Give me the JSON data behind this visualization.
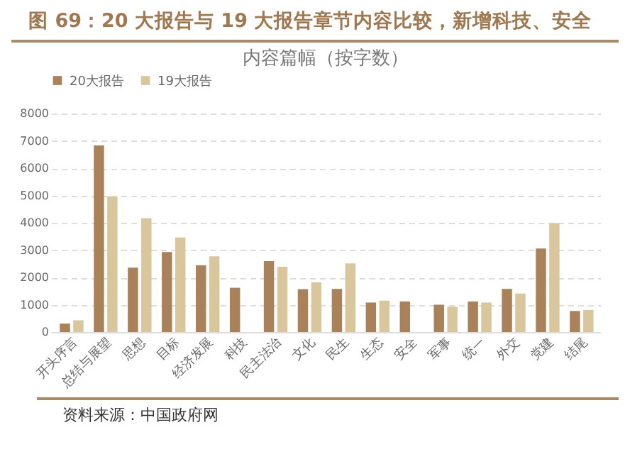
{
  "chart_data": {
    "type": "bar",
    "title": "图 69：20 大报告与 19 大报告章节内容比较，新增科技、安全",
    "subtitle": "内容篇幅（按字数）",
    "categories": [
      "开头序言",
      "总结与展望",
      "思想",
      "目标",
      "经济发展",
      "科技",
      "民主法治",
      "文化",
      "民生",
      "生态",
      "安全",
      "军事",
      "统一",
      "外交",
      "党建",
      "结尾"
    ],
    "series": [
      {
        "name": "20大报告",
        "color": "#a9825a",
        "values": [
          310,
          6830,
          2360,
          2930,
          2440,
          1620,
          2600,
          1570,
          1580,
          1080,
          1120,
          1000,
          1120,
          1580,
          3060,
          770
        ]
      },
      {
        "name": "19大报告",
        "color": "#d9c69c",
        "values": [
          430,
          4960,
          4170,
          3460,
          2770,
          null,
          2390,
          1820,
          2510,
          1150,
          null,
          930,
          1080,
          1410,
          3990,
          810
        ]
      }
    ],
    "ylim": [
      0,
      8000
    ],
    "yticks": [
      0,
      1000,
      2000,
      3000,
      4000,
      5000,
      6000,
      7000,
      8000
    ],
    "grid": "y",
    "legend": "top",
    "annotations": [
      "资料来源：中国政府网"
    ]
  }
}
